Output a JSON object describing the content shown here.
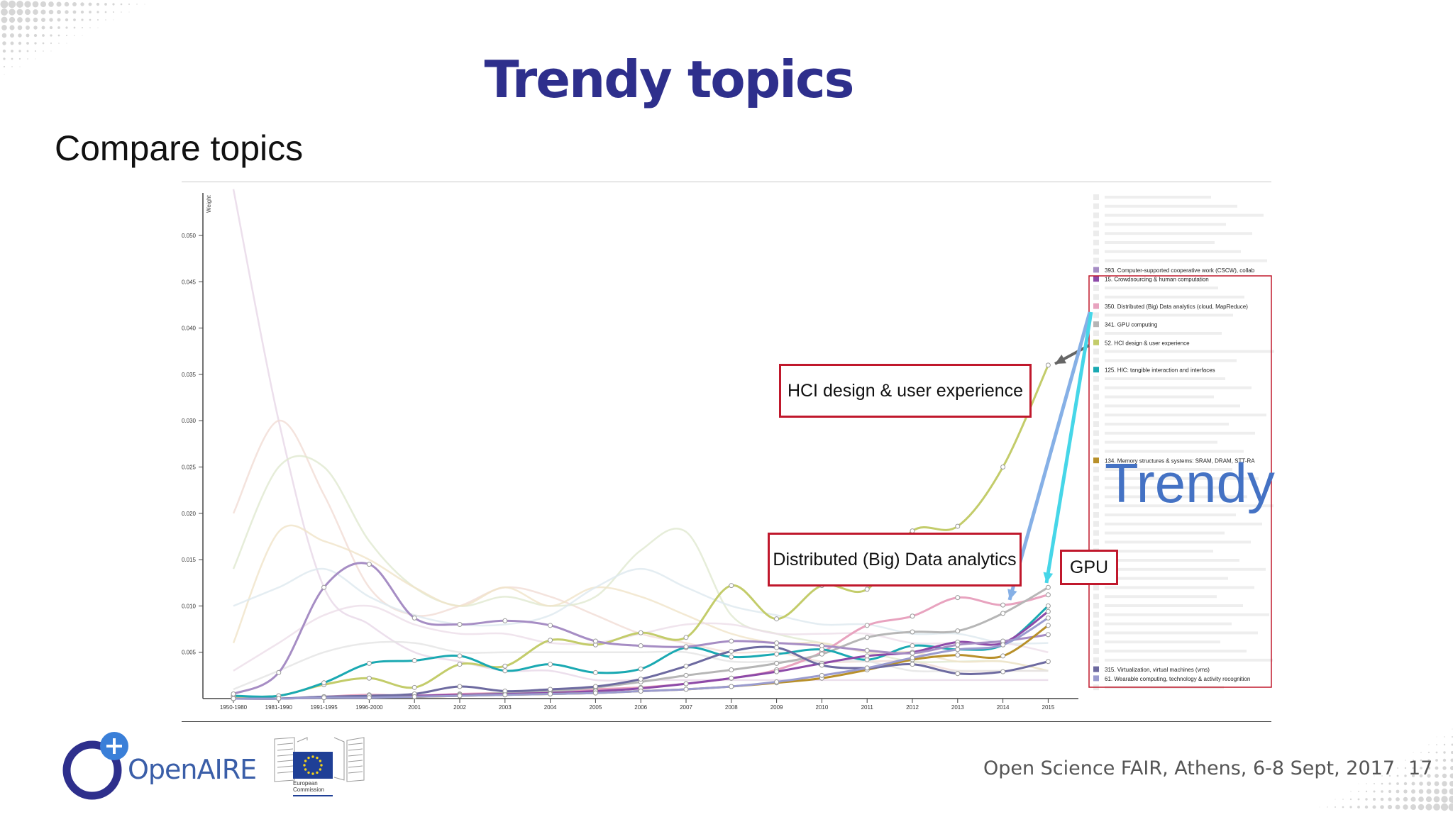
{
  "slide": {
    "title": "Trendy topics",
    "subtitle": "Compare topics",
    "footer": "Open Science FAIR, Athens, 6-8 Sept, 2017",
    "page_number": "17"
  },
  "logos": {
    "openaire": "OpenAIRE",
    "ec_line1": "European",
    "ec_line2": "Commission"
  },
  "callouts": {
    "hci": "HCI design & user experience",
    "distributed": "Distributed (Big) Data analytics",
    "gpu": "GPU",
    "trendy": "Trendy"
  },
  "colors": {
    "title": "#2e2f8c",
    "callout_border": "#c0182c",
    "trendy": "#4472c4",
    "arrow_gray": "#666666",
    "arrow_blue": "#86b0e6",
    "arrow_cyan": "#46d6e8"
  },
  "chart_data": {
    "type": "line",
    "ylabel": "Weight",
    "ylim": [
      0,
      0.055
    ],
    "yticks": [
      0.005,
      0.01,
      0.015,
      0.02,
      0.025,
      0.03,
      0.035,
      0.04,
      0.045,
      0.05
    ],
    "categories": [
      "1950-1980",
      "1981-1990",
      "1991-1995",
      "1996-2000",
      "2001",
      "2002",
      "2003",
      "2004",
      "2005",
      "2006",
      "2007",
      "2008",
      "2009",
      "2010",
      "2011",
      "2012",
      "2013",
      "2014",
      "2015"
    ],
    "series": [
      {
        "name": "52. HCI design & user experience",
        "color": "#c3cc6a",
        "values": [
          0.0002,
          0.0003,
          0.0015,
          0.0022,
          0.0012,
          0.0037,
          0.0035,
          0.0063,
          0.0058,
          0.0071,
          0.0066,
          0.0122,
          0.0086,
          0.0122,
          0.0118,
          0.0181,
          0.0186,
          0.025,
          0.036
        ]
      },
      {
        "name": "350. Distributed (Big) Data analytics (cloud, MapReduce)",
        "color": "#e8a3bf",
        "values": [
          0,
          0,
          0.0002,
          0.0004,
          0.0003,
          0.0005,
          0.0006,
          0.0008,
          0.001,
          0.0012,
          0.0016,
          0.0022,
          0.0031,
          0.005,
          0.0079,
          0.0089,
          0.0109,
          0.0101,
          0.0112
        ]
      },
      {
        "name": "341. GPU computing",
        "color": "#b6b6b6",
        "values": [
          0,
          0,
          0.0001,
          0.0002,
          0.0003,
          0.0004,
          0.0006,
          0.0008,
          0.0012,
          0.0018,
          0.0025,
          0.0031,
          0.0038,
          0.0048,
          0.0066,
          0.0072,
          0.0073,
          0.0092,
          0.012
        ]
      },
      {
        "name": "125. HIC: tangible interaction and interfaces",
        "color": "#1aa9b2",
        "values": [
          0.0003,
          0.0003,
          0.0017,
          0.0038,
          0.0041,
          0.0046,
          0.003,
          0.0037,
          0.0028,
          0.0032,
          0.0055,
          0.0045,
          0.0048,
          0.0053,
          0.0042,
          0.0057,
          0.0053,
          0.0058,
          0.01
        ]
      },
      {
        "name": "15. Crowdsourcing & human computation",
        "color": "#8d4aa8",
        "values": [
          0,
          0,
          0.0001,
          0.0002,
          0.0003,
          0.0004,
          0.0005,
          0.0006,
          0.0008,
          0.0011,
          0.0016,
          0.0022,
          0.0029,
          0.0038,
          0.0046,
          0.005,
          0.0061,
          0.006,
          0.0094
        ]
      },
      {
        "name": "393. Computer-supported cooperative work (CSCW), collaboration",
        "color": "#a68dc4",
        "values": [
          0.0005,
          0.0028,
          0.012,
          0.0145,
          0.0087,
          0.008,
          0.0084,
          0.0079,
          0.0062,
          0.0057,
          0.0056,
          0.0062,
          0.006,
          0.0057,
          0.0052,
          0.0049,
          0.0058,
          0.0062,
          0.0069
        ]
      },
      {
        "name": "134. Memory structures & systems: SRAM, DRAM, STT-RAM",
        "color": "#b8902a",
        "values": [
          0,
          0,
          0.0001,
          0.0002,
          0.0002,
          0.0003,
          0.0004,
          0.0005,
          0.0006,
          0.0008,
          0.001,
          0.0013,
          0.0017,
          0.0022,
          0.0031,
          0.0042,
          0.0047,
          0.0046,
          0.0079
        ]
      },
      {
        "name": "315. Virtualization, virtual machines (vms)",
        "color": "#6d6aa0",
        "values": [
          0,
          0,
          0.0002,
          0.0003,
          0.0005,
          0.0013,
          0.0008,
          0.001,
          0.0013,
          0.0021,
          0.0035,
          0.0051,
          0.0055,
          0.0036,
          0.0033,
          0.0037,
          0.0027,
          0.0029,
          0.004
        ]
      },
      {
        "name": "61. Wearable computing, technology & activity recognition",
        "color": "#9a9bcf",
        "values": [
          0,
          0,
          0.0001,
          0.0001,
          0.0002,
          0.0003,
          0.0004,
          0.0005,
          0.0006,
          0.0008,
          0.001,
          0.0013,
          0.0018,
          0.0025,
          0.0033,
          0.0044,
          0.0053,
          0.0058,
          0.0087
        ]
      }
    ],
    "legend": {
      "placement": "right",
      "faded_entries": 8,
      "highlighted": [
        {
          "label": "393. Computer-supported cooperative work (CSCW), collab",
          "color": "#a68dc4",
          "row": 8
        },
        {
          "label": "15. Crowdsourcing & human computation",
          "color": "#8d4aa8",
          "row": 9
        },
        {
          "label": "350. Distributed (Big) Data analytics (cloud, MapReduce)",
          "color": "#e8a3bf",
          "row": 12
        },
        {
          "label": "341. GPU computing",
          "color": "#b6b6b6",
          "row": 14
        },
        {
          "label": "52. HCI design & user experience",
          "color": "#c3cc6a",
          "row": 16
        },
        {
          "label": "125. HIC: tangible interaction and interfaces",
          "color": "#1aa9b2",
          "row": 19
        },
        {
          "label": "134. Memory structures & systems: SRAM, DRAM, STT-RA",
          "color": "#b8902a",
          "row": 29
        },
        {
          "label": "315. Virtualization, virtual machines (vms)",
          "color": "#6d6aa0",
          "row": 52
        },
        {
          "label": "61. Wearable computing, technology & activity recognition",
          "color": "#9a9bcf",
          "row": 53
        }
      ]
    },
    "grid": false
  }
}
